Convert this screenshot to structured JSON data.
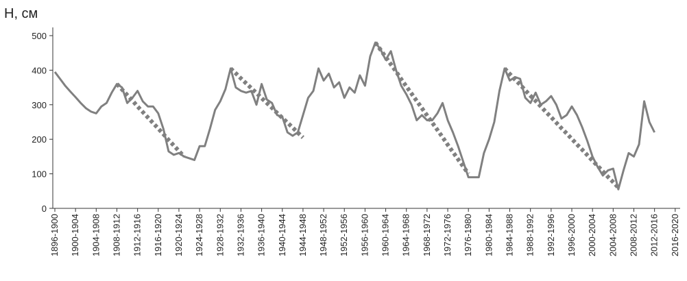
{
  "chart_data": {
    "type": "line",
    "ylabel": "H, см",
    "categories": [
      "1896-1900",
      null,
      null,
      null,
      "1900-1904",
      null,
      null,
      null,
      "1904-1908",
      null,
      null,
      null,
      "1908-1912",
      null,
      null,
      null,
      "1912-1916",
      null,
      null,
      null,
      "1916-1920",
      null,
      null,
      null,
      "1920-1924",
      null,
      null,
      null,
      "1924-1928",
      null,
      null,
      null,
      "1928-1932",
      null,
      null,
      null,
      "1932-1936",
      null,
      null,
      null,
      "1936-1940",
      null,
      null,
      null,
      "1940-1944",
      null,
      null,
      null,
      "1944-1948",
      null,
      null,
      null,
      "1948-1952",
      null,
      null,
      null,
      "1952-1956",
      null,
      null,
      null,
      "1956-1960",
      null,
      null,
      null,
      "1960-1964",
      null,
      null,
      null,
      "1964-1968",
      null,
      null,
      null,
      "1968-1972",
      null,
      null,
      null,
      "1972-1976",
      null,
      null,
      null,
      "1976-1980",
      null,
      null,
      null,
      "1980-1984",
      null,
      null,
      null,
      "1984-1988",
      null,
      null,
      null,
      "1988-1992",
      null,
      null,
      null,
      "1992-1996",
      null,
      null,
      null,
      "1996-2000",
      null,
      null,
      null,
      "2000-2004",
      null,
      null,
      null,
      "2004-2008",
      null,
      null,
      null,
      "2008-2012",
      null,
      null,
      null,
      "2012-2016",
      null,
      null,
      null,
      "2016-2020"
    ],
    "series": [
      {
        "color": "#808080",
        "style": "solid",
        "values": [
          395,
          375,
          355,
          338,
          322,
          305,
          290,
          280,
          275,
          295,
          305,
          335,
          360,
          350,
          305,
          320,
          340,
          310,
          295,
          295,
          275,
          230,
          165,
          155,
          160,
          150,
          145,
          140,
          180,
          180,
          230,
          285,
          310,
          345,
          405,
          350,
          340,
          335,
          340,
          300,
          360,
          315,
          305,
          270,
          265,
          220,
          210,
          220,
          270,
          320,
          340,
          405,
          370,
          390,
          350,
          365,
          320,
          350,
          335,
          385,
          355,
          440,
          480,
          460,
          430,
          455,
          400,
          355,
          330,
          300,
          255,
          270,
          255,
          255,
          275,
          305,
          255,
          220,
          180,
          135,
          90,
          90,
          90,
          160,
          200,
          250,
          340,
          405,
          370,
          380,
          375,
          320,
          305,
          335,
          300,
          310,
          325,
          300,
          260,
          270,
          295,
          270,
          235,
          195,
          150,
          120,
          95,
          110,
          115,
          55,
          110,
          160,
          150,
          185,
          310,
          250,
          220,
          null,
          null,
          null,
          null
        ]
      },
      {
        "color": "#808080",
        "style": "dotted",
        "values": [
          null,
          null,
          null,
          null,
          null,
          null,
          null,
          null,
          null,
          null,
          null,
          null,
          360,
          344,
          328,
          312,
          295,
          279,
          263,
          247,
          231,
          215,
          198,
          182,
          166,
          150,
          null,
          null,
          null,
          null,
          null,
          null,
          null,
          null,
          405,
          391,
          376,
          362,
          348,
          334,
          319,
          305,
          291,
          276,
          262,
          248,
          234,
          219,
          205,
          null,
          null,
          null,
          null,
          null,
          null,
          null,
          null,
          null,
          null,
          null,
          null,
          null,
          480,
          459,
          438,
          417,
          396,
          374,
          353,
          332,
          311,
          290,
          269,
          248,
          227,
          206,
          184,
          163,
          142,
          121,
          100,
          null,
          null,
          null,
          null,
          null,
          null,
          405,
          389,
          373,
          358,
          342,
          326,
          311,
          295,
          279,
          264,
          248,
          232,
          217,
          201,
          185,
          170,
          154,
          138,
          123,
          107,
          91,
          76,
          60,
          null,
          null,
          null,
          null,
          null,
          null,
          null,
          null,
          null,
          null,
          null
        ]
      }
    ],
    "ylim": [
      0,
      500
    ],
    "yticks": [
      0,
      100,
      200,
      300,
      400,
      500
    ]
  }
}
